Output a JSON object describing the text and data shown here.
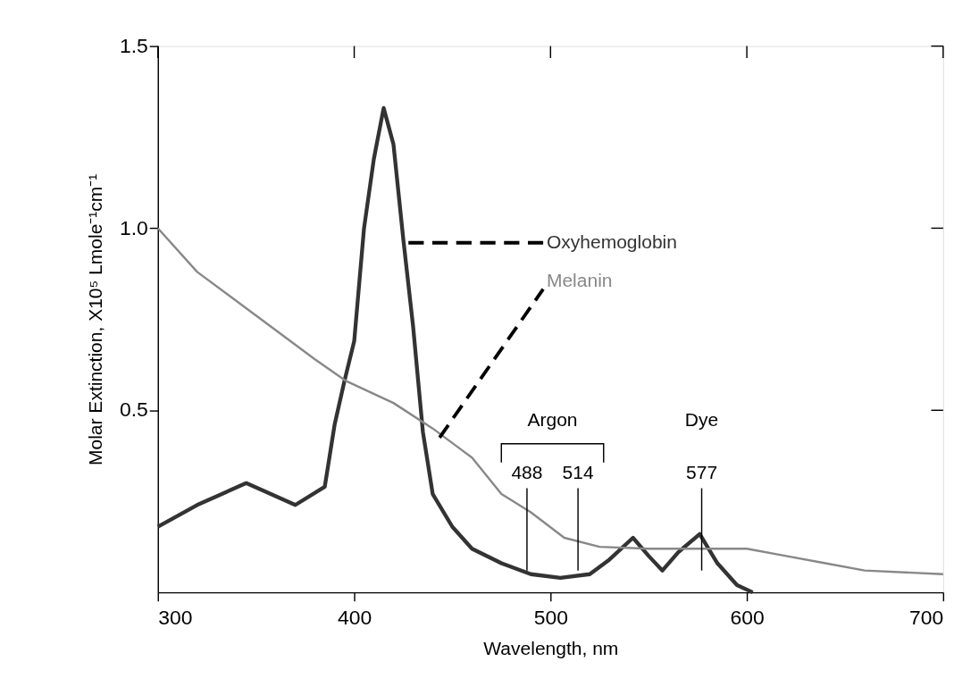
{
  "chart_data": {
    "type": "line",
    "xlabel": "Wavelength, nm",
    "ylabel": "Molar Extinction, X10⁵ Lmole⁻¹cm⁻¹",
    "xlim": [
      300,
      700
    ],
    "xticks": [
      300,
      400,
      500,
      600,
      700
    ],
    "ylim": [
      0,
      1.5
    ],
    "yticks": [
      {
        "value": 0.5,
        "label": "0.5"
      },
      {
        "value": 1,
        "label": "1.0"
      },
      {
        "value": 1.5,
        "label": "1.5"
      }
    ],
    "grid": false,
    "legend": false,
    "marker": "none",
    "line_style": "solid",
    "series": [
      {
        "name": "Oxyhemoglobin",
        "color": "#333333",
        "x": [
          300,
          320,
          345,
          370,
          385,
          390,
          395,
          400,
          405,
          410,
          415,
          420,
          425,
          430,
          435,
          440,
          450,
          460,
          475,
          490,
          505,
          520,
          530,
          542,
          550,
          557,
          565,
          576,
          585,
          595,
          603
        ],
        "values": [
          0.18,
          0.24,
          0.3,
          0.24,
          0.29,
          0.46,
          0.58,
          0.69,
          1.0,
          1.19,
          1.33,
          1.23,
          0.97,
          0.73,
          0.44,
          0.27,
          0.18,
          0.12,
          0.08,
          0.05,
          0.04,
          0.05,
          0.09,
          0.15,
          0.1,
          0.06,
          0.11,
          0.16,
          0.08,
          0.02,
          0.0
        ]
      },
      {
        "name": "Melanin",
        "color": "#888888",
        "x": [
          300,
          320,
          350,
          380,
          396,
          420,
          440,
          460,
          475,
          490,
          507,
          525,
          550,
          575,
          600,
          620,
          640,
          660,
          700
        ],
        "values": [
          1.0,
          0.88,
          0.76,
          0.64,
          0.58,
          0.52,
          0.45,
          0.37,
          0.27,
          0.22,
          0.15,
          0.125,
          0.12,
          0.12,
          0.12,
          0.1,
          0.08,
          0.06,
          0.05
        ]
      }
    ],
    "ref_lines": [
      {
        "axis": "x",
        "value": 488,
        "label": "488"
      },
      {
        "axis": "x",
        "value": 514,
        "label": "514"
      },
      {
        "axis": "x",
        "value": 577,
        "label": "577"
      }
    ],
    "annotations": [
      "Argon",
      "Dye"
    ]
  }
}
